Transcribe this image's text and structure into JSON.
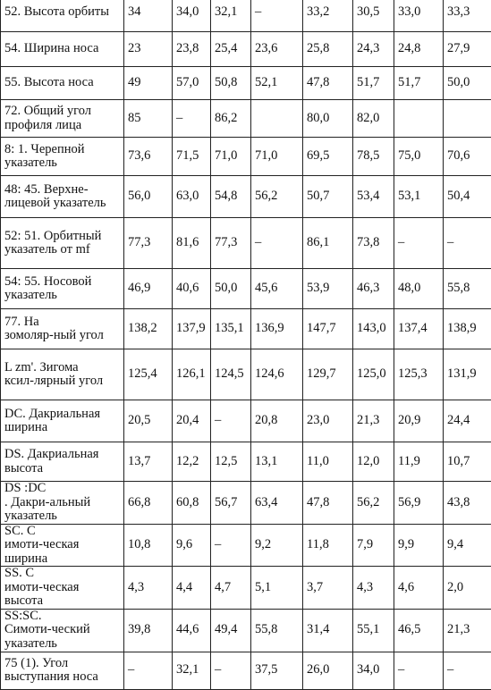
{
  "rows": [
    {
      "label": "52. Высота орбиты",
      "values": [
        "34",
        "34,0",
        "32,1",
        "–",
        "33,2",
        "30,5",
        "33,0",
        "33,3"
      ]
    },
    {
      "label": "54. Ширина носа",
      "values": [
        "23",
        "23,8",
        "25,4",
        "23,6",
        "25,8",
        "24,3",
        "24,8",
        "27,9"
      ]
    },
    {
      "label": "55. Высота носа",
      "values": [
        "49",
        "57,0",
        "50,8",
        "52,1",
        "47,8",
        "51,7",
        "51,7",
        "50,0"
      ]
    },
    {
      "label": "72. Общий угол профиля лица",
      "values": [
        "85",
        "–",
        "86,2",
        "",
        "80,0",
        "82,0",
        "",
        ""
      ]
    },
    {
      "label": "8: 1. Черепной указатель",
      "values": [
        "73,6",
        "71,5",
        "71,0",
        "71,0",
        "69,5",
        "78,5",
        "75,0",
        "70,6"
      ]
    },
    {
      "label": "48: 45. Верхне-лицевой указатель",
      "values": [
        "56,0",
        "63,0",
        "54,8",
        "56,2",
        "50,7",
        "53,4",
        "53,1",
        "50,4"
      ]
    },
    {
      "label": "52: 51. Орбитный указатель от mf",
      "values": [
        "77,3",
        "81,6",
        "77,3",
        "–",
        "86,1",
        "73,8",
        "–",
        "–"
      ]
    },
    {
      "label": "54: 55. Носовой указатель",
      "values": [
        "46,9",
        "40,6",
        "50,0",
        "45,6",
        "53,9",
        "46,3",
        "48,0",
        "55,8"
      ]
    },
    {
      "label": "77. Назомоляр-ный угол",
      "values": [
        "138,2",
        "137,9",
        "135,1",
        "136,9",
        "147,7",
        "143,0",
        "137,4",
        "138,9"
      ]
    },
    {
      "label": "L zm'. Зигомаксил-лярный угол",
      "values": [
        "125,4",
        "126,1",
        "124,5",
        "124,6",
        "129,7",
        "125,0",
        "125,3",
        "131,9"
      ]
    },
    {
      "label": "DC. Дакриальная ширина",
      "values": [
        "20,5",
        "20,4",
        "–",
        "20,8",
        "23,0",
        "21,3",
        "20,9",
        "24,4"
      ]
    },
    {
      "label": "DS. Дакриальная высота",
      "values": [
        "13,7",
        "12,2",
        "12,5",
        "13,1",
        "11,0",
        "12,0",
        "11,9",
        "10,7"
      ]
    },
    {
      "label": "DS :DC. Дакри-альный указатель",
      "values": [
        "66,8",
        "60,8",
        "56,7",
        "63,4",
        "47,8",
        "56,2",
        "56,9",
        "43,8"
      ]
    },
    {
      "label": "SC. Симоти-ческая ширина",
      "values": [
        "10,8",
        "9,6",
        "–",
        "9,2",
        "11,8",
        "7,9",
        "9,9",
        "9,4"
      ]
    },
    {
      "label": "SS. Симоти-ческая высота",
      "values": [
        "4,3",
        "4,4",
        "4,7",
        "5,1",
        "3,7",
        "4,3",
        "4,6",
        "2,0"
      ]
    },
    {
      "label": "SS:SC.Симоти-ческий указатель",
      "values": [
        "39,8",
        "44,6",
        "49,4",
        "55,8",
        "31,4",
        "55,1",
        "46,5",
        "21,3"
      ]
    },
    {
      "label": "75 (1). Угол выступания носа",
      "values": [
        "–",
        "32,1",
        "–",
        "37,5",
        "26,0",
        "34,0",
        "–",
        "–"
      ]
    }
  ]
}
